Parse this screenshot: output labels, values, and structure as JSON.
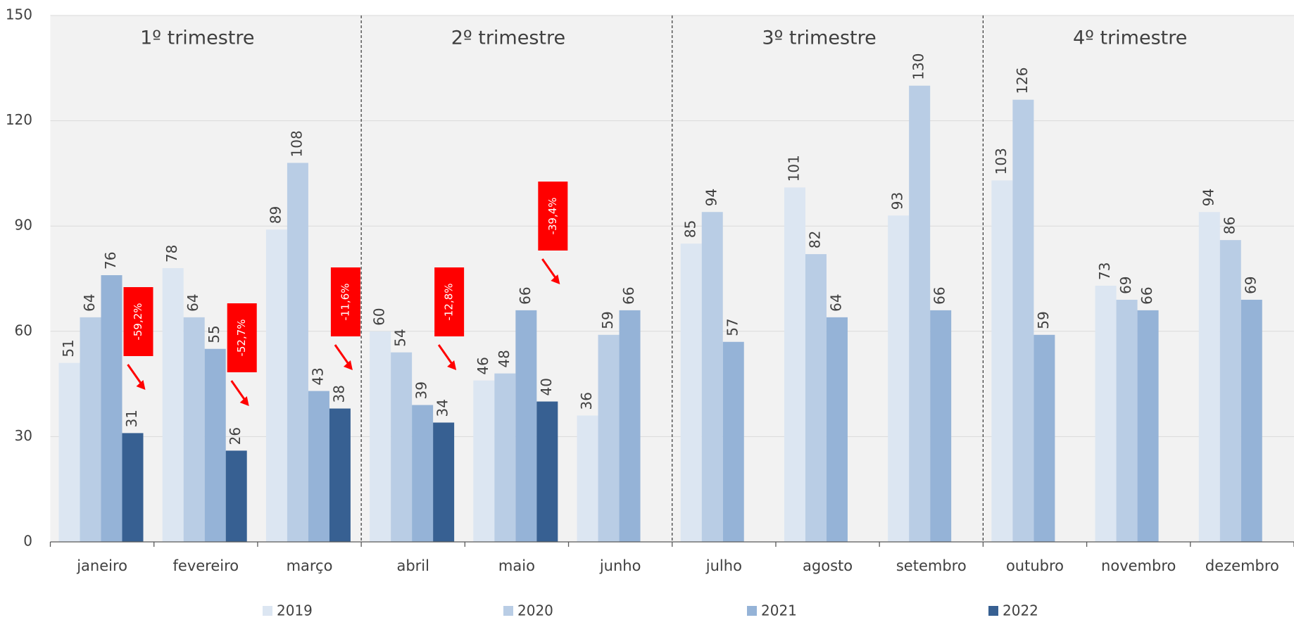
{
  "chart_data": {
    "type": "bar",
    "categories": [
      "janeiro",
      "fevereiro",
      "março",
      "abril",
      "maio",
      "junho",
      "julho",
      "agosto",
      "setembro",
      "outubro",
      "novembro",
      "dezembro"
    ],
    "series": [
      {
        "name": "2019",
        "color": "#dce6f2",
        "values": [
          51,
          78,
          89,
          60,
          46,
          36,
          85,
          101,
          93,
          103,
          73,
          94
        ]
      },
      {
        "name": "2020",
        "color": "#b9cde5",
        "values": [
          64,
          64,
          108,
          54,
          48,
          59,
          94,
          82,
          130,
          126,
          69,
          86
        ]
      },
      {
        "name": "2021",
        "color": "#95b3d7",
        "values": [
          76,
          55,
          43,
          39,
          66,
          66,
          57,
          64,
          66,
          59,
          66,
          69
        ]
      },
      {
        "name": "2022",
        "color": "#376092",
        "values": [
          31,
          26,
          38,
          34,
          40,
          null,
          null,
          null,
          null,
          null,
          null,
          null
        ]
      }
    ],
    "quarter_labels": [
      "1º trimestre",
      "2º trimestre",
      "3º trimestre",
      "4º trimestre"
    ],
    "change_labels": [
      "-59,2%",
      "-52,7%",
      "-11,6%",
      "-12,8%",
      "-39,4%"
    ],
    "ylim": [
      0,
      150
    ],
    "yticks": [
      0,
      30,
      60,
      90,
      120,
      150
    ],
    "grid": true,
    "legend": "bottom"
  }
}
